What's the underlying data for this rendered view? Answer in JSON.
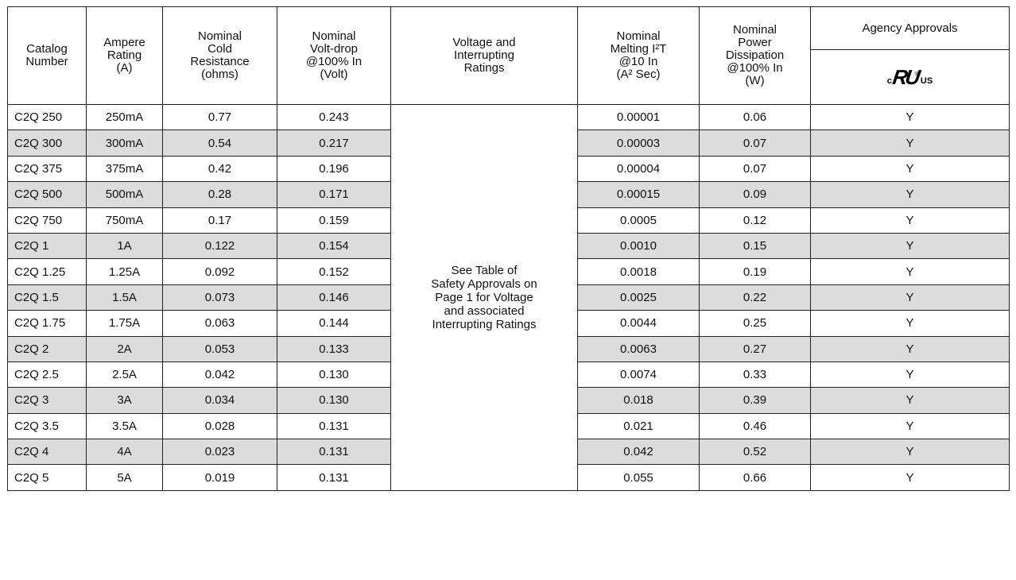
{
  "headers": {
    "catalog": "Catalog\nNumber",
    "ampere": "Ampere\nRating\n(A)",
    "cold_resistance": "Nominal\nCold\nResistance\n(ohms)",
    "volt_drop": "Nominal\nVolt-drop\n@100% In\n(Volt)",
    "voltage": "Voltage and\nInterrupting\nRatings",
    "melting": "Nominal\nMelting I²T\n@10 In\n(A² Sec)",
    "power": "Nominal\nPower\nDissipation\n@100% In\n(W)",
    "agency": "Agency  Approvals",
    "agency_logo": {
      "icon": "ul-recognized-icon",
      "c": "c",
      "mark": "RU",
      "us": "US",
      "reg": "®"
    }
  },
  "voltage_note": "See Table of\nSafety Approvals on\nPage 1 for Voltage\nand associated\nInterrupting Ratings",
  "shading_color": "#dcdcdc",
  "rows": [
    {
      "catalog": "C2Q 250",
      "ampere": "250mA",
      "resistance": "0.77",
      "volt_drop": "0.243",
      "melting": "0.00001",
      "power": "0.06",
      "agency": "Y"
    },
    {
      "catalog": "C2Q 300",
      "ampere": "300mA",
      "resistance": "0.54",
      "volt_drop": "0.217",
      "melting": "0.00003",
      "power": "0.07",
      "agency": "Y"
    },
    {
      "catalog": "C2Q 375",
      "ampere": "375mA",
      "resistance": "0.42",
      "volt_drop": "0.196",
      "melting": "0.00004",
      "power": "0.07",
      "agency": "Y"
    },
    {
      "catalog": "C2Q 500",
      "ampere": "500mA",
      "resistance": "0.28",
      "volt_drop": "0.171",
      "melting": "0.00015",
      "power": "0.09",
      "agency": "Y"
    },
    {
      "catalog": "C2Q 750",
      "ampere": "750mA",
      "resistance": "0.17",
      "volt_drop": "0.159",
      "melting": "0.0005",
      "power": "0.12",
      "agency": "Y"
    },
    {
      "catalog": "C2Q 1",
      "ampere": "1A",
      "resistance": "0.122",
      "volt_drop": "0.154",
      "melting": "0.0010",
      "power": "0.15",
      "agency": "Y"
    },
    {
      "catalog": "C2Q 1.25",
      "ampere": "1.25A",
      "resistance": "0.092",
      "volt_drop": "0.152",
      "melting": "0.0018",
      "power": "0.19",
      "agency": "Y"
    },
    {
      "catalog": "C2Q 1.5",
      "ampere": "1.5A",
      "resistance": "0.073",
      "volt_drop": "0.146",
      "melting": "0.0025",
      "power": "0.22",
      "agency": "Y"
    },
    {
      "catalog": "C2Q 1.75",
      "ampere": "1.75A",
      "resistance": "0.063",
      "volt_drop": "0.144",
      "melting": "0.0044",
      "power": "0.25",
      "agency": "Y"
    },
    {
      "catalog": "C2Q 2",
      "ampere": "2A",
      "resistance": "0.053",
      "volt_drop": "0.133",
      "melting": "0.0063",
      "power": "0.27",
      "agency": "Y"
    },
    {
      "catalog": "C2Q 2.5",
      "ampere": "2.5A",
      "resistance": "0.042",
      "volt_drop": "0.130",
      "melting": "0.0074",
      "power": "0.33",
      "agency": "Y"
    },
    {
      "catalog": "C2Q 3",
      "ampere": "3A",
      "resistance": "0.034",
      "volt_drop": "0.130",
      "melting": "0.018",
      "power": "0.39",
      "agency": "Y"
    },
    {
      "catalog": "C2Q 3.5",
      "ampere": "3.5A",
      "resistance": "0.028",
      "volt_drop": "0.131",
      "melting": "0.021",
      "power": "0.46",
      "agency": "Y"
    },
    {
      "catalog": "C2Q 4",
      "ampere": "4A",
      "resistance": "0.023",
      "volt_drop": "0.131",
      "melting": "0.042",
      "power": "0.52",
      "agency": "Y"
    },
    {
      "catalog": "C2Q 5",
      "ampere": "5A",
      "resistance": "0.019",
      "volt_drop": "0.131",
      "melting": "0.055",
      "power": "0.66",
      "agency": "Y"
    }
  ]
}
